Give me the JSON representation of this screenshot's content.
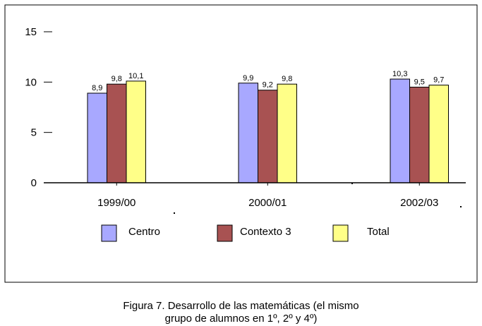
{
  "chart_data": {
    "type": "bar",
    "categories": [
      "1999/00",
      "2000/01",
      "2002/03"
    ],
    "series": [
      {
        "name": "Centro",
        "values": [
          8.9,
          9.9,
          10.3
        ],
        "labels": [
          "8,9",
          "9,9",
          "10,3"
        ],
        "color": "#A8A8FF"
      },
      {
        "name": "Contexto 3",
        "values": [
          9.8,
          9.2,
          9.5
        ],
        "labels": [
          "9,8",
          "9,2",
          "9,5"
        ],
        "color": "#A85252"
      },
      {
        "name": "Total",
        "values": [
          10.1,
          9.8,
          9.7
        ],
        "labels": [
          "10,1",
          "9,8",
          "9,7"
        ],
        "color": "#FFFF88"
      }
    ],
    "ylim": [
      0,
      15
    ],
    "yticks": [
      "0",
      "5",
      "10",
      "15"
    ],
    "ytick_values": [
      0,
      5,
      10,
      15
    ],
    "legend_position": "bottom",
    "grid": false
  },
  "caption": {
    "line1": "Figura 7. Desarrollo de las matemáticas (el mismo",
    "line2": "grupo de alumnos en 1º, 2º y 4º)"
  }
}
